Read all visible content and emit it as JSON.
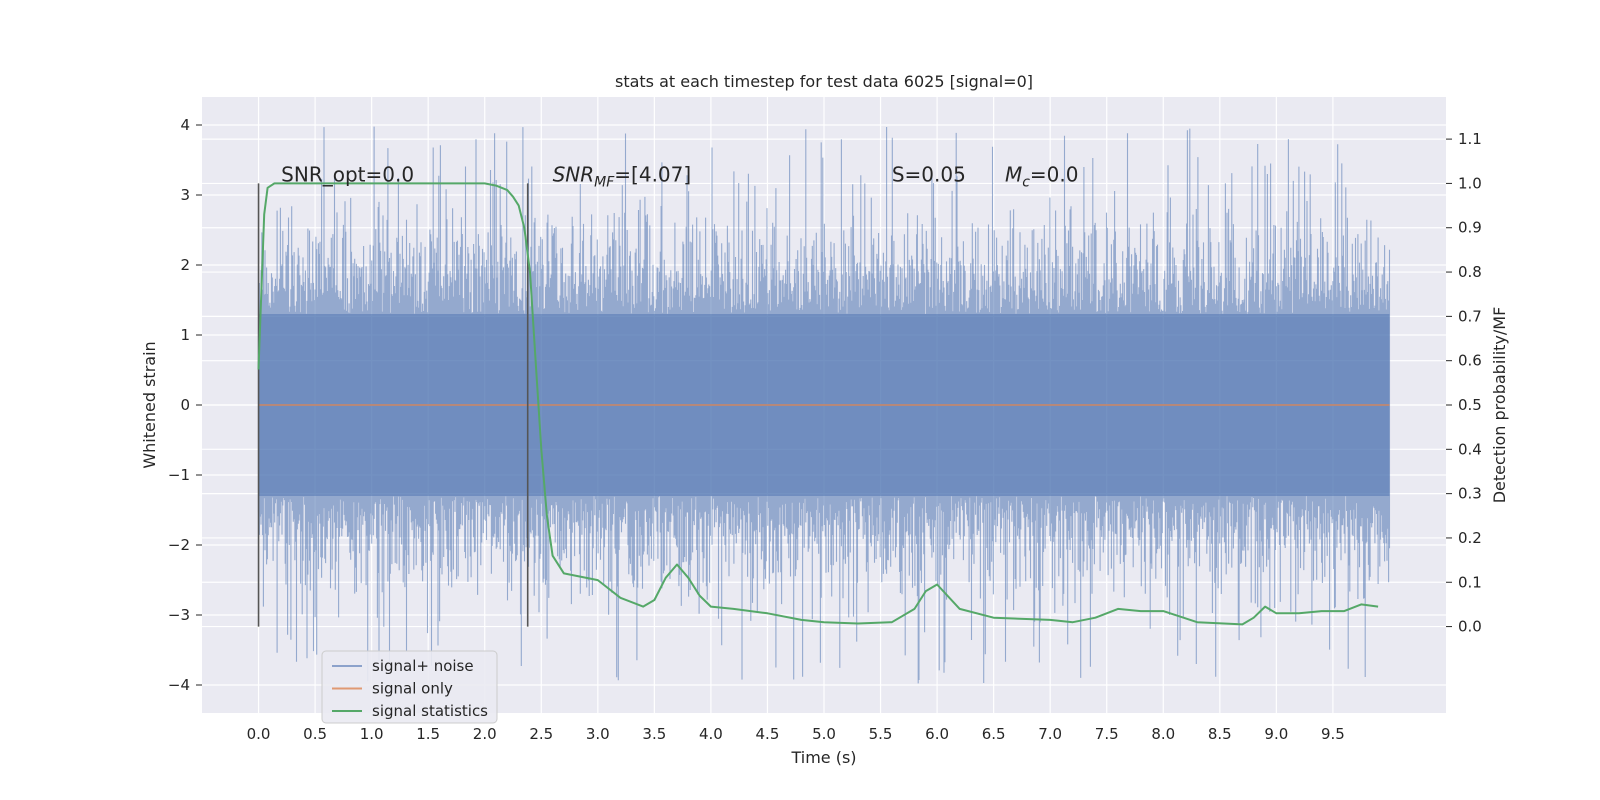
{
  "chart_data": {
    "type": "line",
    "title": "stats at each timestep for test data 6025 [signal=0]",
    "xlabel": "Time (s)",
    "ylabel": "Whitened strain",
    "y2label": "Detection probability/MF",
    "xlim": [
      -0.5,
      10.5
    ],
    "ylim": [
      -4.4,
      4.4
    ],
    "y2lim": [
      -0.195,
      1.195
    ],
    "xticks": [
      "0.0",
      "0.5",
      "1.0",
      "1.5",
      "2.0",
      "2.5",
      "3.0",
      "3.5",
      "4.0",
      "4.5",
      "5.0",
      "5.5",
      "6.0",
      "6.5",
      "7.0",
      "7.5",
      "8.0",
      "8.5",
      "9.0",
      "9.5"
    ],
    "yticks": [
      "4",
      "3",
      "2",
      "1",
      "0",
      "−1",
      "−2",
      "−3",
      "−4"
    ],
    "y2ticks": [
      "1.1",
      "1.0",
      "0.9",
      "0.8",
      "0.7",
      "0.6",
      "0.5",
      "0.4",
      "0.3",
      "0.2",
      "0.1",
      "0.0"
    ],
    "grid": true,
    "legend_position": "lower-left",
    "series": [
      {
        "name": "signal+ noise",
        "axis": "left",
        "color": "#4c72b0",
        "description_range": {
          "x": [
            0.0,
            10.0
          ],
          "core_band": [
            -1.8,
            1.9
          ],
          "extremes": [
            -4.0,
            4.0
          ]
        },
        "values": []
      },
      {
        "name": "signal only",
        "axis": "left",
        "color": "#dd8452",
        "x": [
          0.0,
          10.0
        ],
        "values": [
          0.0,
          0.0
        ]
      },
      {
        "name": "signal statistics",
        "axis": "right",
        "color": "#55a868",
        "x": [
          0.0,
          0.05,
          0.08,
          0.14,
          0.25,
          0.4,
          1.0,
          1.5,
          2.0,
          2.1,
          2.2,
          2.25,
          2.3,
          2.35,
          2.4,
          2.45,
          2.5,
          2.55,
          2.6,
          2.7,
          2.8,
          3.0,
          3.2,
          3.4,
          3.5,
          3.6,
          3.7,
          3.8,
          3.9,
          4.0,
          4.2,
          4.5,
          4.8,
          5.0,
          5.3,
          5.6,
          5.8,
          5.9,
          6.0,
          6.2,
          6.5,
          7.0,
          7.2,
          7.4,
          7.6,
          7.8,
          8.0,
          8.3,
          8.7,
          8.8,
          8.9,
          9.0,
          9.2,
          9.4,
          9.6,
          9.75,
          9.9
        ],
        "values": [
          0.58,
          0.93,
          0.99,
          1.0,
          1.0,
          1.0,
          1.0,
          1.0,
          1.0,
          0.995,
          0.985,
          0.97,
          0.95,
          0.9,
          0.8,
          0.6,
          0.4,
          0.25,
          0.16,
          0.12,
          0.115,
          0.105,
          0.065,
          0.045,
          0.06,
          0.11,
          0.14,
          0.11,
          0.07,
          0.045,
          0.04,
          0.03,
          0.015,
          0.01,
          0.007,
          0.01,
          0.04,
          0.08,
          0.095,
          0.04,
          0.02,
          0.015,
          0.01,
          0.02,
          0.04,
          0.035,
          0.035,
          0.01,
          0.005,
          0.02,
          0.045,
          0.03,
          0.03,
          0.035,
          0.035,
          0.05,
          0.045
        ]
      }
    ],
    "annotations": [
      {
        "text": "SNR_opt=0.0",
        "x": 0.2,
        "y2": 1.0
      },
      {
        "text": "SNR_MF=[4.07]",
        "x": 2.6,
        "y2": 1.0
      },
      {
        "text": "S=0.05",
        "x": 5.6,
        "y2": 1.0
      },
      {
        "text": "M_c=0.0",
        "x": 6.6,
        "y2": 1.0
      }
    ],
    "vlines": [
      {
        "x": 0.0,
        "y2": [
          0.0,
          1.0
        ]
      },
      {
        "x": 2.38,
        "y2": [
          0.0,
          1.0
        ]
      }
    ],
    "colors": {
      "background": "#eaeaf2",
      "grid": "#ffffff",
      "text": "#262626",
      "vline": "#555555"
    }
  }
}
